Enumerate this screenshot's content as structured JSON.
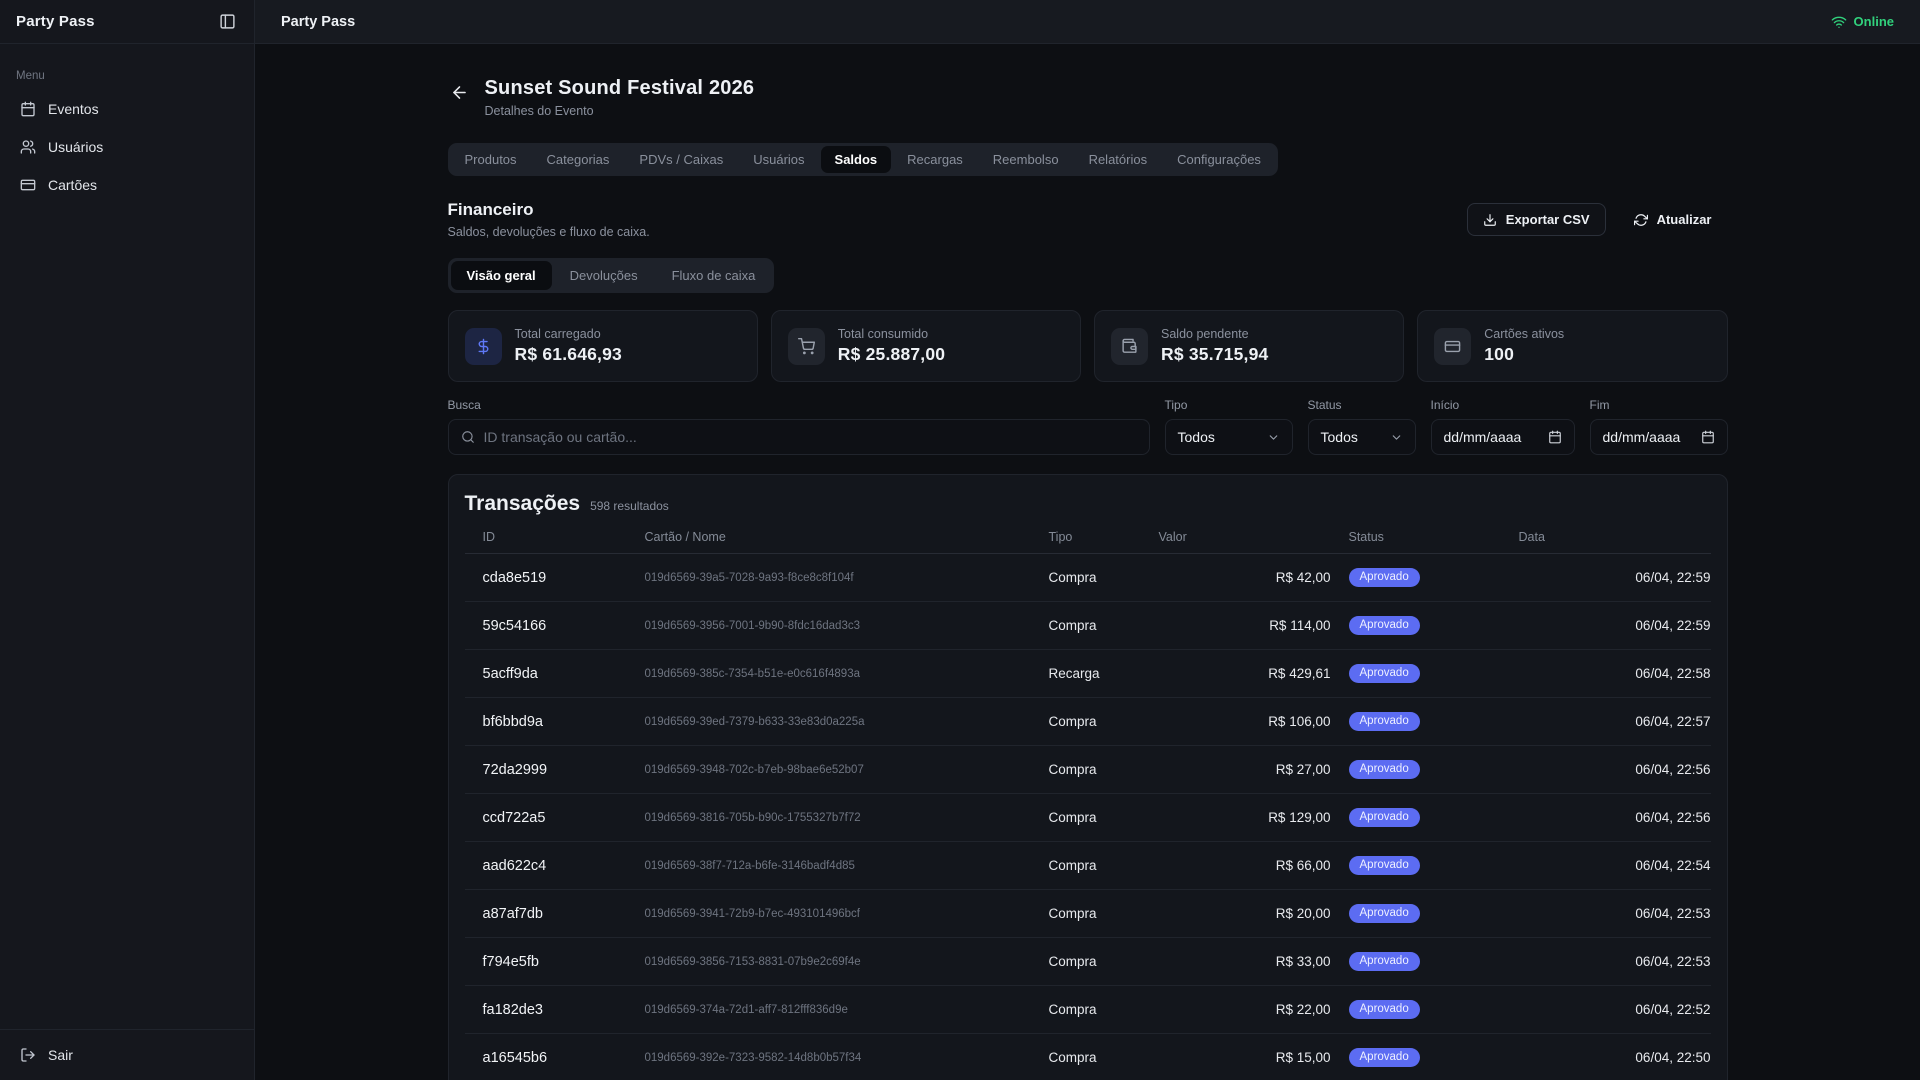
{
  "sidebar": {
    "title": "Party Pass",
    "menu_label": "Menu",
    "items": [
      {
        "label": "Eventos",
        "icon": "calendar-icon"
      },
      {
        "label": "Usuários",
        "icon": "users-icon"
      },
      {
        "label": "Cartões",
        "icon": "credit-card-icon"
      }
    ],
    "logout_label": "Sair"
  },
  "header": {
    "title": "Party Pass",
    "status": "Online"
  },
  "page": {
    "title": "Sunset Sound Festival 2026",
    "subtitle": "Detalhes do Evento",
    "tabs": [
      "Produtos",
      "Categorias",
      "PDVs / Caixas",
      "Usuários",
      "Saldos",
      "Recargas",
      "Reembolso",
      "Relatórios",
      "Configurações"
    ],
    "active_tab": "Saldos"
  },
  "financeiro": {
    "title": "Financeiro",
    "subtitle": "Saldos, devoluções e fluxo de caixa.",
    "export_label": "Exportar CSV",
    "refresh_label": "Atualizar",
    "subtabs": [
      "Visão geral",
      "Devoluções",
      "Fluxo de caixa"
    ],
    "active_subtab": "Visão geral"
  },
  "stats": [
    {
      "label": "Total carregado",
      "value": "R$ 61.646,93",
      "icon": "dollar-icon",
      "accent": true
    },
    {
      "label": "Total consumido",
      "value": "R$ 25.887,00",
      "icon": "cart-icon",
      "accent": false
    },
    {
      "label": "Saldo pendente",
      "value": "R$ 35.715,94",
      "icon": "wallet-icon",
      "accent": false
    },
    {
      "label": "Cartões ativos",
      "value": "100",
      "icon": "credit-card-icon",
      "accent": false
    }
  ],
  "filters": {
    "busca": {
      "label": "Busca",
      "placeholder": "ID transação ou cartão..."
    },
    "tipo": {
      "label": "Tipo",
      "value": "Todos"
    },
    "status": {
      "label": "Status",
      "value": "Todos"
    },
    "inicio": {
      "label": "Início",
      "value": "dd/mm/aaaa"
    },
    "fim": {
      "label": "Fim",
      "value": "dd/mm/aaaa"
    }
  },
  "table": {
    "title": "Transações",
    "results": "598 resultados",
    "columns": [
      "ID",
      "Cartão / Nome",
      "Tipo",
      "Valor",
      "Status",
      "Data"
    ],
    "rows": [
      {
        "id": "cda8e519",
        "card": "019d6569-39a5-7028-9a93-f8ce8c8f104f",
        "tipo": "Compra",
        "valor": "R$ 42,00",
        "status": "Aprovado",
        "data": "06/04, 22:59"
      },
      {
        "id": "59c54166",
        "card": "019d6569-3956-7001-9b90-8fdc16dad3c3",
        "tipo": "Compra",
        "valor": "R$ 114,00",
        "status": "Aprovado",
        "data": "06/04, 22:59"
      },
      {
        "id": "5acff9da",
        "card": "019d6569-385c-7354-b51e-e0c616f4893a",
        "tipo": "Recarga",
        "valor": "R$ 429,61",
        "status": "Aprovado",
        "data": "06/04, 22:58"
      },
      {
        "id": "bf6bbd9a",
        "card": "019d6569-39ed-7379-b633-33e83d0a225a",
        "tipo": "Compra",
        "valor": "R$ 106,00",
        "status": "Aprovado",
        "data": "06/04, 22:57"
      },
      {
        "id": "72da2999",
        "card": "019d6569-3948-702c-b7eb-98bae6e52b07",
        "tipo": "Compra",
        "valor": "R$ 27,00",
        "status": "Aprovado",
        "data": "06/04, 22:56"
      },
      {
        "id": "ccd722a5",
        "card": "019d6569-3816-705b-b90c-1755327b7f72",
        "tipo": "Compra",
        "valor": "R$ 129,00",
        "status": "Aprovado",
        "data": "06/04, 22:56"
      },
      {
        "id": "aad622c4",
        "card": "019d6569-38f7-712a-b6fe-3146badf4d85",
        "tipo": "Compra",
        "valor": "R$ 66,00",
        "status": "Aprovado",
        "data": "06/04, 22:54"
      },
      {
        "id": "a87af7db",
        "card": "019d6569-3941-72b9-b7ec-493101496bcf",
        "tipo": "Compra",
        "valor": "R$ 20,00",
        "status": "Aprovado",
        "data": "06/04, 22:53"
      },
      {
        "id": "f794e5fb",
        "card": "019d6569-3856-7153-8831-07b9e2c69f4e",
        "tipo": "Compra",
        "valor": "R$ 33,00",
        "status": "Aprovado",
        "data": "06/04, 22:53"
      },
      {
        "id": "fa182de3",
        "card": "019d6569-374a-72d1-aff7-812fff836d9e",
        "tipo": "Compra",
        "valor": "R$ 22,00",
        "status": "Aprovado",
        "data": "06/04, 22:52"
      },
      {
        "id": "a16545b6",
        "card": "019d6569-392e-7323-9582-14d8b0b57f34",
        "tipo": "Compra",
        "valor": "R$ 15,00",
        "status": "Aprovado",
        "data": "06/04, 22:50"
      }
    ]
  },
  "colors": {
    "accent_blue": "#5f78f6",
    "badge": "#5c6cf2",
    "online_green": "#31d17c"
  }
}
